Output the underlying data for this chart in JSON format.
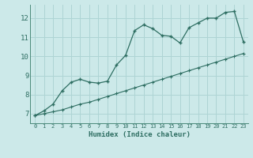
{
  "xlabel": "Humidex (Indice chaleur)",
  "background_color": "#cce9e9",
  "grid_color": "#aed4d4",
  "line_color": "#2e6e62",
  "xlim": [
    -0.5,
    23.5
  ],
  "ylim": [
    6.5,
    12.7
  ],
  "xticks": [
    0,
    1,
    2,
    3,
    4,
    5,
    6,
    7,
    8,
    9,
    10,
    11,
    12,
    13,
    14,
    15,
    16,
    17,
    18,
    19,
    20,
    21,
    22,
    23
  ],
  "yticks": [
    7,
    8,
    9,
    10,
    11,
    12
  ],
  "line1_x": [
    0,
    1,
    2,
    3,
    4,
    5,
    6,
    7,
    8,
    9,
    10,
    11,
    12,
    13,
    14,
    15,
    16,
    17,
    18,
    19,
    20,
    21,
    22,
    23
  ],
  "line1_y": [
    6.9,
    7.15,
    7.5,
    8.2,
    8.65,
    8.8,
    8.65,
    8.6,
    8.7,
    9.55,
    10.05,
    11.35,
    11.65,
    11.45,
    11.1,
    11.05,
    10.7,
    11.5,
    11.75,
    12.0,
    12.0,
    12.3,
    12.35,
    10.75
  ],
  "line2_x": [
    0,
    1,
    2,
    3,
    4,
    5,
    6,
    7,
    8,
    9,
    10,
    11,
    12,
    13,
    14,
    15,
    16,
    17,
    18,
    19,
    20,
    21,
    22,
    23
  ],
  "line2_y": [
    6.9,
    7.0,
    7.1,
    7.2,
    7.35,
    7.5,
    7.6,
    7.75,
    7.9,
    8.05,
    8.2,
    8.35,
    8.5,
    8.65,
    8.8,
    8.95,
    9.1,
    9.25,
    9.4,
    9.55,
    9.7,
    9.85,
    10.0,
    10.15
  ]
}
